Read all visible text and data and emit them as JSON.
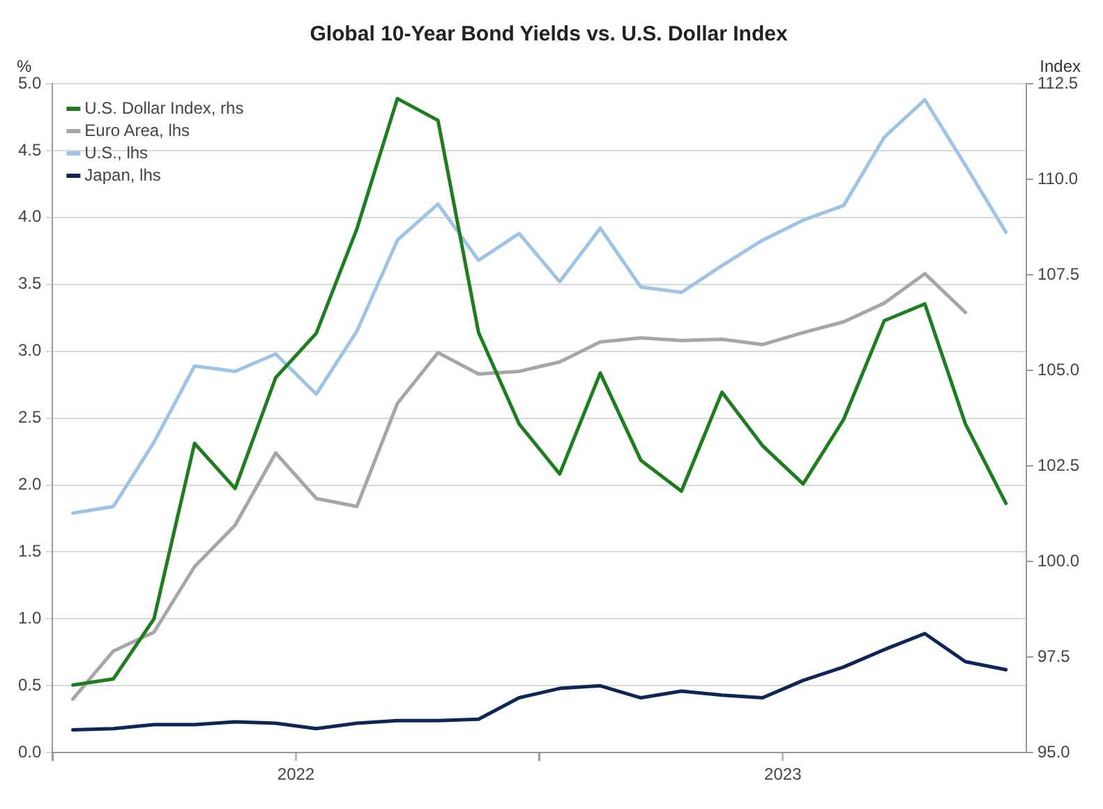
{
  "chart_data": {
    "type": "line",
    "title": "Global 10-Year Bond Yields vs. U.S. Dollar Index",
    "ylabel": "%",
    "y2label": "Index",
    "x": [
      2022.0417,
      2022.125,
      2022.2083,
      2022.2917,
      2022.375,
      2022.4583,
      2022.5417,
      2022.625,
      2022.7083,
      2022.7917,
      2022.875,
      2022.9583,
      2023.0417,
      2023.125,
      2023.2083,
      2023.2917,
      2023.375,
      2023.4583,
      2023.5417,
      2023.625,
      2023.7083,
      2023.7917,
      2023.875,
      2023.9583
    ],
    "series": [
      {
        "name": "U.S. Dollar Index, rhs",
        "color": "#1e7d1e",
        "axis": "y2",
        "values": [
          96.77,
          96.93,
          98.5,
          103.09,
          101.91,
          104.81,
          105.97,
          108.7,
          112.11,
          111.54,
          105.99,
          103.6,
          102.29,
          104.93,
          102.65,
          101.84,
          104.43,
          103.03,
          102.03,
          103.72,
          106.3,
          106.74,
          103.6,
          101.52
        ]
      },
      {
        "name": "Euro Area, lhs",
        "color": "#a6a6a6",
        "values": [
          0.4,
          0.76,
          0.9,
          1.39,
          1.7,
          2.24,
          1.9,
          1.84,
          2.61,
          2.99,
          2.83,
          2.85,
          2.92,
          3.07,
          3.1,
          3.08,
          3.09,
          3.05,
          3.14,
          3.22,
          3.36,
          3.58,
          3.29,
          null
        ]
      },
      {
        "name": "U.S., lhs",
        "color": "#9dc3e6",
        "values": [
          1.79,
          1.84,
          2.32,
          2.89,
          2.85,
          2.98,
          2.68,
          3.15,
          3.83,
          4.1,
          3.68,
          3.88,
          3.52,
          3.92,
          3.48,
          3.44,
          3.64,
          3.83,
          3.98,
          4.09,
          4.6,
          4.88,
          4.39,
          3.89
        ]
      },
      {
        "name": "Japan, lhs",
        "color": "#0d2557",
        "values": [
          0.17,
          0.18,
          0.21,
          0.21,
          0.23,
          0.22,
          0.18,
          0.22,
          0.24,
          0.24,
          0.25,
          0.41,
          0.48,
          0.5,
          0.41,
          0.46,
          0.43,
          0.41,
          0.54,
          0.64,
          0.77,
          0.89,
          0.68,
          0.62
        ]
      }
    ],
    "xlim": [
      2022,
      2024
    ],
    "xticks": [
      {
        "value": 2022,
        "label": null
      },
      {
        "value": 2022.5,
        "label": "2022"
      },
      {
        "value": 2023,
        "label": null
      },
      {
        "value": 2023.5,
        "label": "2023"
      }
    ],
    "ylim": [
      0,
      5
    ],
    "yticks": [
      {
        "value": 0,
        "label": "0.0"
      },
      {
        "value": 0.5,
        "label": "0.5"
      },
      {
        "value": 1,
        "label": "1.0"
      },
      {
        "value": 1.5,
        "label": "1.5"
      },
      {
        "value": 2,
        "label": "2.0"
      },
      {
        "value": 2.5,
        "label": "2.5"
      },
      {
        "value": 3,
        "label": "3.0"
      },
      {
        "value": 3.5,
        "label": "3.5"
      },
      {
        "value": 4,
        "label": "4.0"
      },
      {
        "value": 4.5,
        "label": "4.5"
      },
      {
        "value": 5,
        "label": "5.0"
      }
    ],
    "y2lim": [
      95,
      112.5
    ],
    "y2ticks": [
      {
        "value": 95,
        "label": "95.0"
      },
      {
        "value": 97.5,
        "label": "97.5"
      },
      {
        "value": 100,
        "label": "100.0"
      },
      {
        "value": 102.5,
        "label": "102.5"
      },
      {
        "value": 105,
        "label": "105.0"
      },
      {
        "value": 107.5,
        "label": "107.5"
      },
      {
        "value": 110,
        "label": "110.0"
      },
      {
        "value": 112.5,
        "label": "112.5"
      }
    ],
    "grid": "y",
    "legend": "top left",
    "marker": "none",
    "line_style": "solid"
  }
}
